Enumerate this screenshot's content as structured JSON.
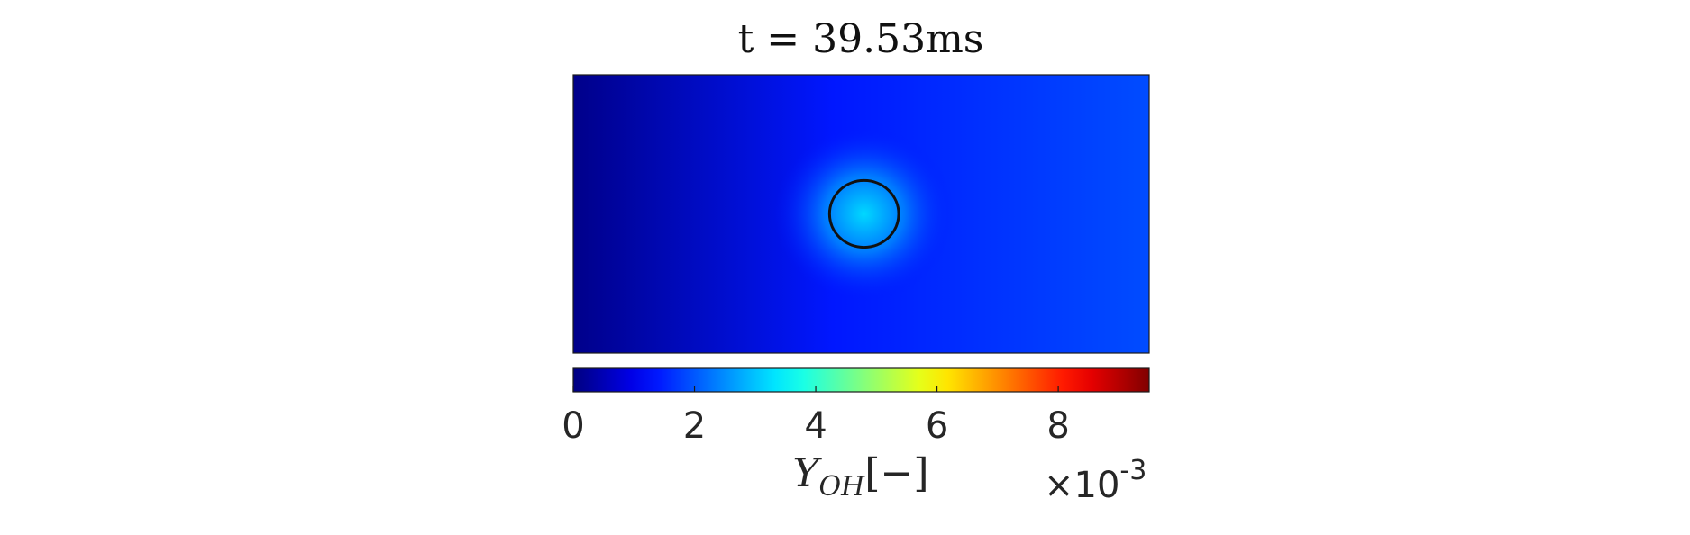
{
  "chart_data": {
    "type": "heatmap",
    "title": "t = 39.53ms",
    "field_description": "Y_OH mass fraction field with circular region outlined",
    "colormap": "jet",
    "colorbar": {
      "orientation": "horizontal",
      "placement": "bottom",
      "range": [
        0,
        9.5
      ],
      "ticks": [
        0,
        2,
        4,
        6,
        8
      ],
      "tick_labels": [
        "0",
        "2",
        "4",
        "6",
        "8"
      ],
      "label_main": "Y",
      "label_sub": "OH",
      "label_units": "[−]",
      "exponent_prefix": "×10",
      "exponent_power": "-3"
    },
    "field_values_approx": {
      "left_edge": 0.1,
      "center": 1.4,
      "right_edge": 1.9,
      "circle_center": 3.2
    },
    "circle_outline": {
      "center_fraction": [
        0.505,
        0.5
      ],
      "radius_x_fraction": 0.06,
      "radius_y_fraction": 0.12
    },
    "colors": {
      "outline": "#111111",
      "frame": "#1a1a1a"
    }
  }
}
